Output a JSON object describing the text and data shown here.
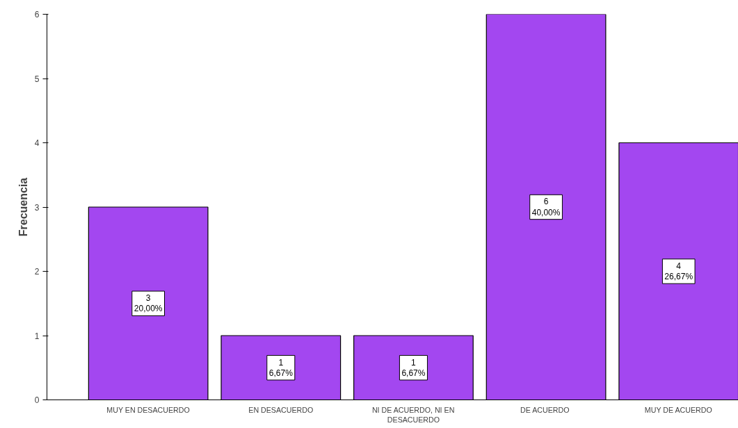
{
  "chart_data": {
    "type": "bar",
    "ylabel": "Frecuencia",
    "categories": [
      "MUY EN DESACUERDO",
      "EN DESACUERDO",
      "NI DE ACUERDO, NI EN DESACUERDO",
      "DE  ACUERDO",
      "MUY DE ACUERDO"
    ],
    "values": [
      3,
      1,
      1,
      6,
      4
    ],
    "value_labels": [
      "3\n20,00%",
      "1\n6,67%",
      "1\n6,67%",
      "6\n40,00%",
      "4\n26,67%"
    ],
    "color": "#a347f0",
    "ylim": [
      0,
      6
    ],
    "yticks": [
      0,
      1,
      2,
      3,
      4,
      5,
      6
    ],
    "grid": false
  }
}
